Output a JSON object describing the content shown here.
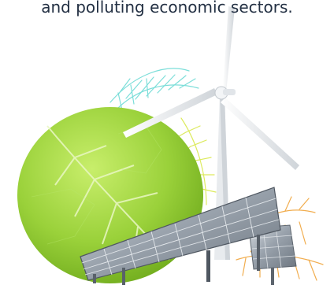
{
  "caption": {
    "text": "and polluting economic sectors."
  },
  "illustration": {
    "elements": [
      "leaf",
      "turbine",
      "solar-panels",
      "leaf-vein-pattern"
    ],
    "colors": {
      "caption_text": "#233043",
      "leaf_green": "#9ad13a",
      "turbine_white": "#f3f5f7",
      "panel_grey": "#9aa3ad",
      "vein_cyan": "#66d9d3",
      "vein_yellow": "#d9e84c",
      "vein_orange": "#f0a53c"
    }
  }
}
